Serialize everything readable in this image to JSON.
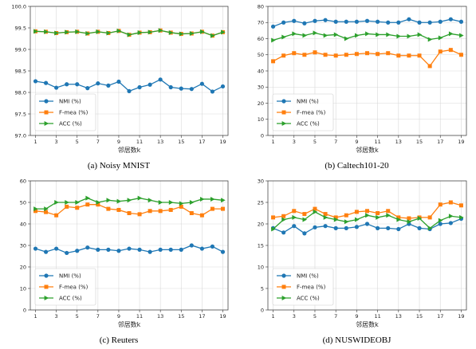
{
  "colors": {
    "nmi": "#1f77b4",
    "fmea": "#ff7f0e",
    "acc": "#2ca02c"
  },
  "legend_labels": [
    "NMI (%)",
    "F-mea (%)",
    "ACC (%)"
  ],
  "chart_data": [
    {
      "type": "line",
      "caption": "(a) Noisy MNIST",
      "xlabel": "邻居数k",
      "ylabel": "",
      "x": [
        1,
        2,
        3,
        4,
        5,
        6,
        7,
        8,
        9,
        10,
        11,
        12,
        13,
        14,
        15,
        16,
        17,
        18,
        19
      ],
      "xticks": [
        1,
        3,
        5,
        7,
        9,
        11,
        13,
        15,
        17,
        19
      ],
      "ylim": [
        97.0,
        100.0
      ],
      "yticks": [
        "97.0",
        "97.5",
        "98.0",
        "98.5",
        "99.0",
        "99.5",
        "100.0"
      ],
      "yticks_values": [
        97.0,
        97.5,
        98.0,
        98.5,
        99.0,
        99.5,
        100.0
      ],
      "legend": "lower-left",
      "grid": true,
      "series": [
        {
          "name": "NMI (%)",
          "values": [
            98.26,
            98.22,
            98.11,
            98.19,
            98.19,
            98.1,
            98.21,
            98.16,
            98.25,
            98.03,
            98.12,
            98.18,
            98.3,
            98.12,
            98.09,
            98.08,
            98.2,
            98.02,
            98.14
          ]
        },
        {
          "name": "F-mea (%)",
          "values": [
            99.42,
            99.41,
            99.38,
            99.4,
            99.41,
            99.37,
            99.41,
            99.38,
            99.43,
            99.34,
            99.39,
            99.4,
            99.44,
            99.39,
            99.36,
            99.37,
            99.41,
            99.32,
            99.4
          ]
        },
        {
          "name": "ACC (%)",
          "values": [
            99.42,
            99.41,
            99.38,
            99.4,
            99.41,
            99.37,
            99.41,
            99.38,
            99.43,
            99.34,
            99.39,
            99.4,
            99.44,
            99.39,
            99.36,
            99.37,
            99.41,
            99.32,
            99.4
          ]
        }
      ]
    },
    {
      "type": "line",
      "caption": "(b) Caltech101-20",
      "xlabel": "邻居数k",
      "ylabel": "",
      "x": [
        1,
        2,
        3,
        4,
        5,
        6,
        7,
        8,
        9,
        10,
        11,
        12,
        13,
        14,
        15,
        16,
        17,
        18,
        19
      ],
      "xticks": [
        1,
        3,
        5,
        7,
        9,
        11,
        13,
        15,
        17,
        19
      ],
      "ylim": [
        0,
        80
      ],
      "yticks": [
        "0",
        "10",
        "20",
        "30",
        "40",
        "50",
        "60",
        "70",
        "80"
      ],
      "yticks_values": [
        0,
        10,
        20,
        30,
        40,
        50,
        60,
        70,
        80
      ],
      "legend": "lower-left",
      "grid": true,
      "series": [
        {
          "name": "NMI (%)",
          "values": [
            67.5,
            70,
            71,
            69.5,
            71,
            71.5,
            70.5,
            70.5,
            70.5,
            71,
            70.5,
            70,
            70,
            72,
            70,
            70,
            70.5,
            72,
            70.5
          ]
        },
        {
          "name": "F-mea (%)",
          "values": [
            46,
            49.5,
            51,
            50,
            51.5,
            50,
            49.5,
            50,
            50.5,
            51,
            50.5,
            51,
            49.5,
            49.5,
            49.5,
            43,
            52,
            53,
            50
          ]
        },
        {
          "name": "ACC (%)",
          "values": [
            59,
            61,
            63,
            62,
            63.5,
            62,
            62.5,
            60,
            62,
            63,
            62.5,
            62.5,
            61.5,
            61.5,
            62.5,
            59.5,
            60.5,
            63,
            62
          ]
        }
      ]
    },
    {
      "type": "line",
      "caption": "(c) Reuters",
      "xlabel": "邻居数k",
      "ylabel": "",
      "x": [
        1,
        2,
        3,
        4,
        5,
        6,
        7,
        8,
        9,
        10,
        11,
        12,
        13,
        14,
        15,
        16,
        17,
        18,
        19
      ],
      "xticks": [
        1,
        3,
        5,
        7,
        9,
        11,
        13,
        15,
        17,
        19
      ],
      "ylim": [
        0,
        60
      ],
      "yticks": [
        "0",
        "10",
        "20",
        "30",
        "40",
        "50",
        "60"
      ],
      "yticks_values": [
        0,
        10,
        20,
        30,
        40,
        50,
        60
      ],
      "legend": "lower-left",
      "grid": true,
      "series": [
        {
          "name": "NMI (%)",
          "values": [
            28.5,
            27,
            28.5,
            26.5,
            27.5,
            29,
            28,
            28,
            27.5,
            28.5,
            28,
            27,
            28,
            28,
            28,
            30,
            28.5,
            29.5,
            27
          ]
        },
        {
          "name": "F-mea (%)",
          "values": [
            46,
            45.5,
            44,
            48,
            47.5,
            49,
            49,
            47,
            46.5,
            45,
            44.5,
            46,
            46,
            46.5,
            48,
            45,
            44,
            47,
            47
          ]
        },
        {
          "name": "ACC (%)",
          "values": [
            47,
            47,
            50,
            50,
            50,
            52,
            50,
            51,
            50.5,
            51,
            52,
            51,
            50,
            50,
            49.5,
            50,
            51.5,
            51.5,
            51
          ]
        }
      ]
    },
    {
      "type": "line",
      "caption": "(d) NUSWIDEOBJ",
      "xlabel": "邻居数k",
      "ylabel": "",
      "x": [
        1,
        2,
        3,
        4,
        5,
        6,
        7,
        8,
        9,
        10,
        11,
        12,
        13,
        14,
        15,
        16,
        17,
        18,
        19
      ],
      "xticks": [
        1,
        3,
        5,
        7,
        9,
        11,
        13,
        15,
        17,
        19
      ],
      "ylim": [
        0,
        30
      ],
      "yticks": [
        "0",
        "5",
        "10",
        "15",
        "20",
        "25",
        "30"
      ],
      "yticks_values": [
        0,
        5,
        10,
        15,
        20,
        25,
        30
      ],
      "legend": "lower-left",
      "grid": true,
      "series": [
        {
          "name": "NMI (%)",
          "values": [
            19,
            18,
            19.5,
            17.8,
            19.2,
            19.5,
            19,
            19,
            19.3,
            20,
            19,
            19,
            18.8,
            20,
            19,
            18.8,
            20,
            20.2,
            21.2
          ]
        },
        {
          "name": "F-mea (%)",
          "values": [
            21.5,
            21.8,
            23,
            22.3,
            23.5,
            22.3,
            21.5,
            22,
            22.8,
            23,
            22.5,
            23,
            21.5,
            21.3,
            21.5,
            21.5,
            24.5,
            25,
            24.3
          ]
        },
        {
          "name": "ACC (%)",
          "values": [
            18.8,
            21,
            21.5,
            21,
            22.8,
            21.5,
            21,
            20.5,
            21,
            22,
            21.5,
            22,
            21,
            20.5,
            21.3,
            19,
            20.8,
            21.8,
            21.5
          ]
        }
      ]
    }
  ]
}
